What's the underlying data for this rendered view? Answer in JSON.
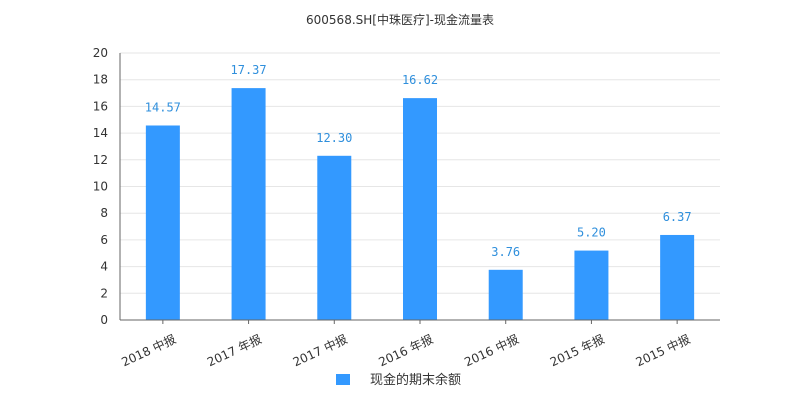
{
  "chart_data": {
    "type": "bar",
    "title": "600568.SH[中珠医疗]-现金流量表",
    "categories": [
      "2018 中报",
      "2017 年报",
      "2017 中报",
      "2016 年报",
      "2016 中报",
      "2015 年报",
      "2015 中报"
    ],
    "series": [
      {
        "name": "现金的期末余额",
        "values": [
          14.57,
          17.37,
          12.3,
          16.62,
          3.76,
          5.2,
          6.37
        ],
        "labels": [
          "14.57",
          "17.37",
          "12.30",
          "16.62",
          "3.76",
          "5.20",
          "6.37"
        ],
        "color": "#3399ff"
      }
    ],
    "ylim": [
      0,
      20
    ],
    "yticks": [
      "0",
      "2",
      "4",
      "6",
      "8",
      "10",
      "12",
      "14",
      "16",
      "18",
      "20"
    ],
    "xlabel": "",
    "ylabel": "",
    "grid": true,
    "legend": "bottom-center",
    "colors": {
      "bar": "#3399ff",
      "label": "#2f8fdc",
      "grid": "#e6e6e6",
      "axis": "#666666"
    }
  }
}
